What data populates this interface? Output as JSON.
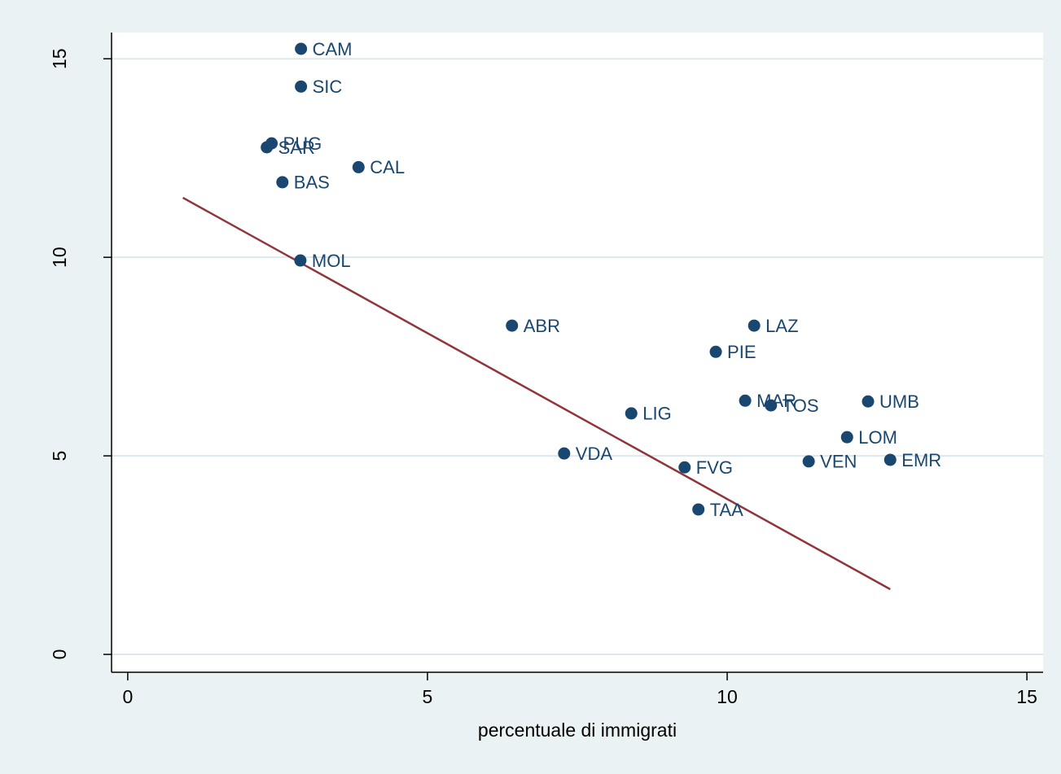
{
  "chart_data": {
    "type": "scatter",
    "xlabel": "percentuale di immigrati",
    "labels": [
      "CAM",
      "SIC",
      "PUG",
      "SAR",
      "BAS",
      "CAL",
      "MOL",
      "ABR",
      "LAZ",
      "PIE",
      "MAR",
      "TOS",
      "UMB",
      "LIG",
      "LOM",
      "VDA",
      "VEN",
      "EMR",
      "FVG",
      "TAA"
    ],
    "x": [
      2.89,
      2.89,
      2.4,
      2.32,
      2.58,
      3.85,
      2.88,
      6.41,
      10.45,
      9.81,
      10.3,
      10.73,
      12.35,
      8.4,
      12.0,
      7.28,
      11.36,
      12.72,
      9.29,
      9.52
    ],
    "y": [
      15.25,
      14.3,
      12.87,
      12.77,
      11.89,
      12.27,
      9.92,
      8.28,
      8.28,
      7.62,
      6.39,
      6.27,
      6.37,
      6.07,
      5.47,
      5.06,
      4.86,
      4.9,
      4.71,
      3.65
    ],
    "color": "#1a476f",
    "fit": {
      "x": [
        0.92,
        12.72
      ],
      "y": [
        11.5,
        1.64
      ],
      "color": "#90353b"
    },
    "xlim": [
      -0.27,
      15.27
    ],
    "ylim": [
      -0.45,
      15.66
    ],
    "xticks": [
      0,
      5,
      10,
      15
    ],
    "yticks": [
      0,
      5,
      10,
      15
    ],
    "grid": true
  }
}
